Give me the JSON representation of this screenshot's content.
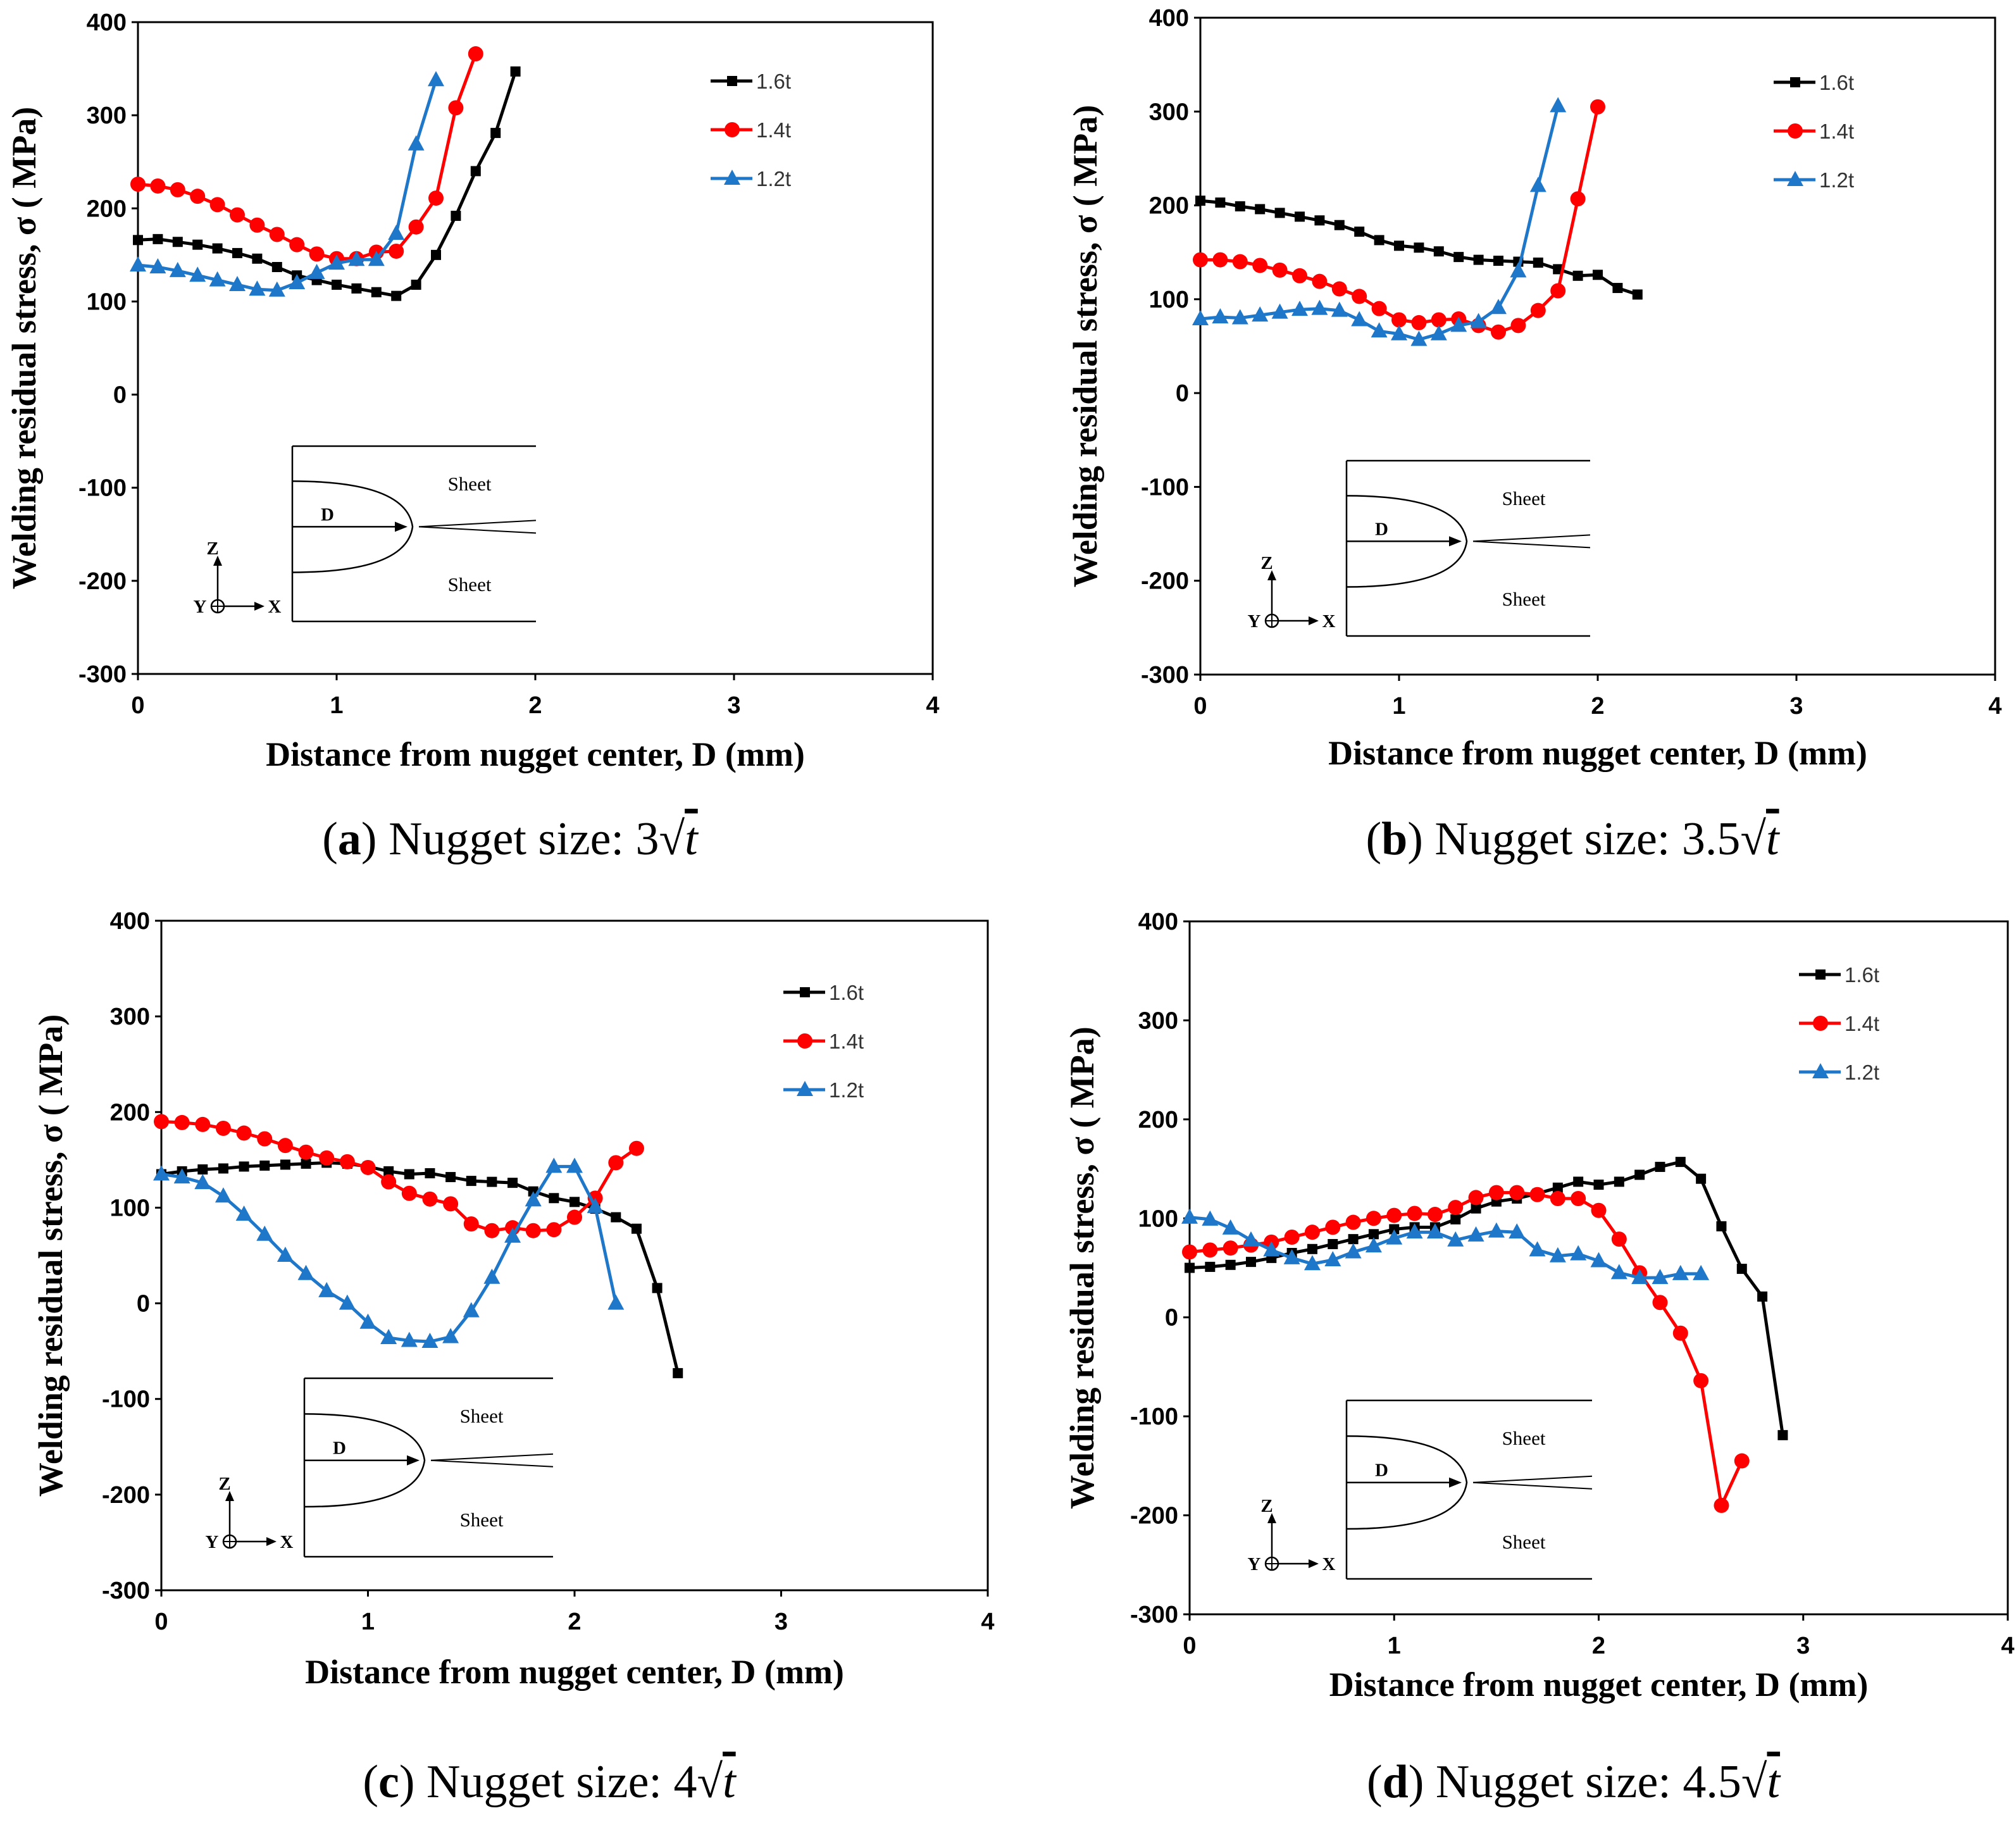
{
  "colors": {
    "s16": "#000000",
    "s14": "#ff0000",
    "s12": "#1f77c9"
  },
  "inset": {
    "sheet_top": "Sheet",
    "sheet_bottom": "Sheet",
    "d_label": "D",
    "z": "Z",
    "y": "Y",
    "x": "X"
  },
  "chart_data": [
    {
      "type": "line",
      "panel": "a",
      "caption": {
        "open": "(",
        "letter": "a",
        "close": ")",
        "text": " Nugget size: 3",
        "radicand": "t"
      },
      "xlabel": "Distance from nugget center, D (mm)",
      "ylabel": "Welding residual stress, σ ( MPa)",
      "xlim": [
        0,
        4
      ],
      "ylim": [
        -300,
        400
      ],
      "xticks": [
        "0",
        "1",
        "2",
        "3",
        "4"
      ],
      "yticks": [
        "-300",
        "-200",
        "-100",
        "0",
        "100",
        "200",
        "300",
        "400"
      ],
      "legend_position": "top-right",
      "series": [
        {
          "name": "1.6t",
          "marker": "square",
          "x": [
            0,
            0.1,
            0.2,
            0.3,
            0.4,
            0.5,
            0.6,
            0.7,
            0.8,
            0.9,
            1.0,
            1.1,
            1.2,
            1.3,
            1.4,
            1.5,
            1.6,
            1.7,
            1.8,
            1.9
          ],
          "y": [
            166,
            167,
            164,
            161,
            157,
            152,
            146,
            137,
            128,
            123,
            118,
            114,
            110,
            106,
            118,
            150,
            192,
            240,
            281,
            347
          ]
        },
        {
          "name": "1.4t",
          "marker": "circle",
          "x": [
            0,
            0.1,
            0.2,
            0.3,
            0.4,
            0.5,
            0.6,
            0.7,
            0.8,
            0.9,
            1.0,
            1.1,
            1.2,
            1.3,
            1.4,
            1.5,
            1.6,
            1.7
          ],
          "y": [
            226,
            224,
            220,
            213,
            204,
            193,
            182,
            172,
            161,
            151,
            146,
            146,
            153,
            154,
            180,
            211,
            308,
            366
          ]
        },
        {
          "name": "1.2t",
          "marker": "triangle",
          "x": [
            0,
            0.1,
            0.2,
            0.3,
            0.4,
            0.5,
            0.6,
            0.7,
            0.8,
            0.9,
            1.0,
            1.1,
            1.2,
            1.3,
            1.4,
            1.5
          ],
          "y": [
            139,
            137,
            133,
            128,
            123,
            118,
            113,
            112,
            120,
            131,
            141,
            145,
            145,
            173,
            269,
            338
          ]
        }
      ]
    },
    {
      "type": "line",
      "panel": "b",
      "caption": {
        "open": "(",
        "letter": "b",
        "close": ")",
        "text": " Nugget size: 3.5",
        "radicand": "t"
      },
      "xlabel": "Distance from nugget center, D (mm)",
      "ylabel": "Welding residual stress, σ ( MPa)",
      "xlim": [
        0,
        4
      ],
      "ylim": [
        -300,
        400
      ],
      "xticks": [
        "0",
        "1",
        "2",
        "3",
        "4"
      ],
      "yticks": [
        "-300",
        "-200",
        "-100",
        "0",
        "100",
        "200",
        "300",
        "400"
      ],
      "legend_position": "top-right",
      "series": [
        {
          "name": "1.6t",
          "marker": "square",
          "x": [
            0,
            0.1,
            0.2,
            0.3,
            0.4,
            0.5,
            0.6,
            0.7,
            0.8,
            0.9,
            1.0,
            1.1,
            1.2,
            1.3,
            1.4,
            1.5,
            1.6,
            1.7,
            1.8,
            1.9,
            2.0,
            2.1,
            2.2
          ],
          "y": [
            205,
            203,
            199,
            196,
            192,
            188,
            184,
            179,
            172,
            163,
            157,
            155,
            151,
            145,
            142,
            141,
            140,
            139,
            132,
            125,
            126,
            112,
            105
          ]
        },
        {
          "name": "1.4t",
          "marker": "circle",
          "x": [
            0,
            0.1,
            0.2,
            0.3,
            0.4,
            0.5,
            0.6,
            0.7,
            0.8,
            0.9,
            1.0,
            1.1,
            1.2,
            1.3,
            1.4,
            1.5,
            1.6,
            1.7,
            1.8,
            1.9,
            2.0
          ],
          "y": [
            142,
            142,
            140,
            136,
            131,
            125,
            119,
            111,
            103,
            90,
            78,
            75,
            78,
            79,
            72,
            65,
            72,
            88,
            109,
            207,
            305
          ]
        },
        {
          "name": "1.2t",
          "marker": "triangle",
          "x": [
            0,
            0.1,
            0.2,
            0.3,
            0.4,
            0.5,
            0.6,
            0.7,
            0.8,
            0.9,
            1.0,
            1.1,
            1.2,
            1.3,
            1.4,
            1.5,
            1.6,
            1.7,
            1.8
          ],
          "y": [
            79,
            81,
            80,
            83,
            86,
            89,
            90,
            88,
            78,
            66,
            63,
            57,
            63,
            72,
            76,
            91,
            130,
            221,
            306
          ]
        }
      ]
    },
    {
      "type": "line",
      "panel": "c",
      "caption": {
        "open": "(",
        "letter": "c",
        "close": ")",
        "text": " Nugget size: 4",
        "radicand": "t"
      },
      "xlabel": "Distance from nugget center, D (mm)",
      "ylabel": "Welding residual stress, σ ( MPa)",
      "xlim": [
        0,
        4
      ],
      "ylim": [
        -300,
        400
      ],
      "xticks": [
        "0",
        "1",
        "2",
        "3",
        "4"
      ],
      "yticks": [
        "-300",
        "-200",
        "-100",
        "0",
        "100",
        "200",
        "300",
        "400"
      ],
      "legend_position": "top-right",
      "series": [
        {
          "name": "1.6t",
          "marker": "square",
          "x": [
            0,
            0.1,
            0.2,
            0.3,
            0.4,
            0.5,
            0.6,
            0.7,
            0.8,
            0.9,
            1.0,
            1.1,
            1.2,
            1.3,
            1.4,
            1.5,
            1.6,
            1.7,
            1.8,
            1.9,
            2.0,
            2.1,
            2.2,
            2.3,
            2.4,
            2.5
          ],
          "y": [
            135,
            138,
            140,
            141,
            143,
            144,
            145,
            146,
            147,
            146,
            143,
            138,
            135,
            136,
            132,
            128,
            127,
            126,
            117,
            110,
            106,
            99,
            90,
            78,
            16,
            -73
          ]
        },
        {
          "name": "1.4t",
          "marker": "circle",
          "x": [
            0,
            0.1,
            0.2,
            0.3,
            0.4,
            0.5,
            0.6,
            0.7,
            0.8,
            0.9,
            1.0,
            1.1,
            1.2,
            1.3,
            1.4,
            1.5,
            1.6,
            1.7,
            1.8,
            1.9,
            2.0,
            2.1,
            2.2,
            2.3
          ],
          "y": [
            190,
            189,
            187,
            183,
            178,
            172,
            165,
            158,
            152,
            148,
            142,
            127,
            115,
            109,
            104,
            83,
            76,
            79,
            76,
            77,
            90,
            110,
            147,
            162
          ]
        },
        {
          "name": "1.2t",
          "marker": "triangle",
          "x": [
            0,
            0.1,
            0.2,
            0.3,
            0.4,
            0.5,
            0.6,
            0.7,
            0.8,
            0.9,
            1.0,
            1.1,
            1.2,
            1.3,
            1.4,
            1.5,
            1.6,
            1.7,
            1.8,
            1.9,
            2.0,
            2.1,
            2.2
          ],
          "y": [
            135,
            132,
            126,
            112,
            93,
            72,
            50,
            31,
            13,
            0,
            -20,
            -36,
            -39,
            -40,
            -35,
            -8,
            27,
            70,
            108,
            143,
            143,
            101,
            0
          ]
        }
      ]
    },
    {
      "type": "line",
      "panel": "d",
      "caption": {
        "open": "(",
        "letter": "d",
        "close": ")",
        "text": " Nugget size: 4.5",
        "radicand": "t"
      },
      "xlabel": "Distance from nugget center, D (mm)",
      "ylabel": "Welding residual stress, σ ( MPa)",
      "xlim": [
        0,
        4
      ],
      "ylim": [
        -300,
        400
      ],
      "xticks": [
        "0",
        "1",
        "2",
        "3",
        "4"
      ],
      "yticks": [
        "-300",
        "-200",
        "-100",
        "0",
        "100",
        "200",
        "300",
        "400"
      ],
      "legend_position": "top-right",
      "series": [
        {
          "name": "1.6t",
          "marker": "square",
          "x": [
            0,
            0.1,
            0.2,
            0.3,
            0.4,
            0.5,
            0.6,
            0.7,
            0.8,
            0.9,
            1.0,
            1.1,
            1.2,
            1.3,
            1.4,
            1.5,
            1.6,
            1.7,
            1.8,
            1.9,
            2.0,
            2.1,
            2.2,
            2.3,
            2.4,
            2.5,
            2.6,
            2.7,
            2.8,
            2.9
          ],
          "y": [
            50,
            51,
            53,
            56,
            60,
            65,
            69,
            74,
            79,
            84,
            89,
            91,
            91,
            99,
            110,
            117,
            120,
            125,
            131,
            137,
            134,
            137,
            144,
            152,
            157,
            140,
            92,
            49,
            21,
            -119
          ]
        },
        {
          "name": "1.4t",
          "marker": "circle",
          "x": [
            0,
            0.1,
            0.2,
            0.3,
            0.4,
            0.5,
            0.6,
            0.7,
            0.8,
            0.9,
            1.0,
            1.1,
            1.2,
            1.3,
            1.4,
            1.5,
            1.6,
            1.7,
            1.8,
            1.9,
            2.0,
            2.1,
            2.2,
            2.3,
            2.4,
            2.5,
            2.6,
            2.7
          ],
          "y": [
            66,
            68,
            70,
            73,
            76,
            81,
            86,
            91,
            96,
            100,
            103,
            105,
            104,
            111,
            121,
            126,
            126,
            124,
            120,
            120,
            108,
            79,
            45,
            15,
            -16,
            -64,
            -190,
            -145
          ]
        },
        {
          "name": "1.2t",
          "marker": "triangle",
          "x": [
            0,
            0.1,
            0.2,
            0.3,
            0.4,
            0.5,
            0.6,
            0.7,
            0.8,
            0.9,
            1.0,
            1.1,
            1.2,
            1.3,
            1.4,
            1.5,
            1.6,
            1.7,
            1.8,
            1.9,
            2.0,
            2.1,
            2.2,
            2.3,
            2.4,
            2.5
          ],
          "y": [
            101,
            99,
            90,
            78,
            68,
            60,
            54,
            58,
            66,
            72,
            80,
            86,
            86,
            78,
            83,
            87,
            86,
            68,
            62,
            64,
            57,
            45,
            40,
            40,
            44,
            44
          ]
        }
      ]
    }
  ]
}
